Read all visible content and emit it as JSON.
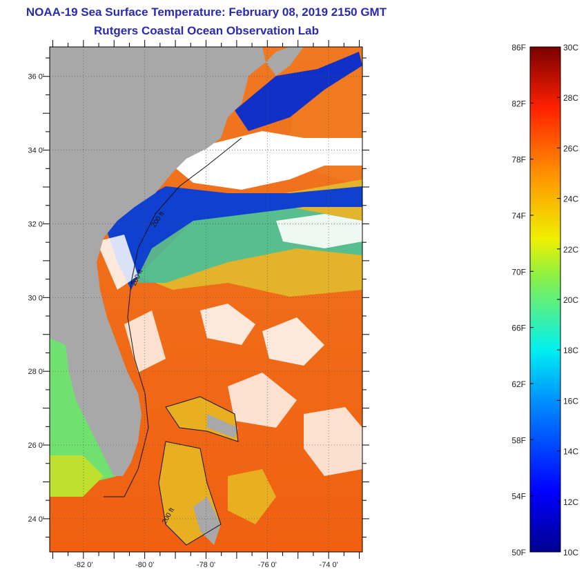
{
  "title": {
    "line1": "NOAA-19 Sea Surface Temperature:  February 08, 2019 2150 GMT",
    "line2": "Rutgers Coastal Ocean Observation Lab"
  },
  "map": {
    "lat_labels": [
      "36 0'",
      "34 0'",
      "32 0'",
      "30 0'",
      "28 0'",
      "26 0'",
      "24 0'"
    ],
    "lat_values": [
      36,
      34,
      32,
      30,
      28,
      26,
      24
    ],
    "lon_labels": [
      "-82 0'",
      "-80 0'",
      "-78 0'",
      "-76 0'",
      "-74 0'"
    ],
    "lon_values": [
      -82,
      -80,
      -78,
      -76,
      -74
    ],
    "lat_range": [
      23.1,
      36.8
    ],
    "lon_range": [
      -83.1,
      -72.9
    ],
    "contour_labels": [
      "200 ft",
      "200 ft",
      "200 ft"
    ],
    "colors": {
      "land": "#a8a8a8",
      "cloud": "#ffffff",
      "gulf_stream": "#f06a10",
      "shelf_cold": "#1030c8"
    }
  },
  "colorbar": {
    "fahrenheit_labels": [
      "86F",
      "82F",
      "78F",
      "74F",
      "70F",
      "66F",
      "62F",
      "58F",
      "54F",
      "50F"
    ],
    "fahrenheit_values": [
      86,
      82,
      78,
      74,
      70,
      66,
      62,
      58,
      54,
      50
    ],
    "celsius_labels": [
      "30C",
      "28C",
      "26C",
      "24C",
      "22C",
      "20C",
      "18C",
      "16C",
      "14C",
      "12C",
      "10C"
    ],
    "celsius_values": [
      30,
      28,
      26,
      24,
      22,
      20,
      18,
      16,
      14,
      12,
      10
    ],
    "range_celsius": [
      10,
      30
    ]
  }
}
